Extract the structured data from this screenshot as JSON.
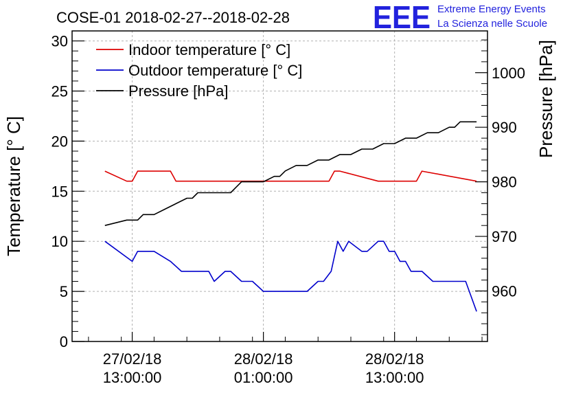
{
  "chart_data": {
    "type": "line",
    "title": "COSE-01 2018-02-27--2018-02-28",
    "logo": {
      "mark": "EEE",
      "line1": "Extreme Energy Events",
      "line2": "La Scienza nelle Scuole"
    },
    "ylabel_left": "Temperature [° C]",
    "ylabel_right": "Pressure [hPa]",
    "ylim_left": [
      0,
      31
    ],
    "yticks_left": [
      0,
      5,
      10,
      15,
      20,
      25,
      30
    ],
    "ylim_right": [
      950.75,
      1007.65
    ],
    "yticks_right": [
      960,
      970,
      980,
      990,
      1000
    ],
    "xlim_hours": [
      7.5,
      45.5
    ],
    "xticks": [
      {
        "hour": 13,
        "line1": "27/02/18",
        "line2": "13:00:00"
      },
      {
        "hour": 25,
        "line1": "28/02/18",
        "line2": "01:00:00"
      },
      {
        "hour": 37,
        "line1": "28/02/18",
        "line2": "13:00:00"
      }
    ],
    "grid": true,
    "legend_position": "top-left",
    "series": [
      {
        "name": "Indoor temperature [° C]",
        "color": "#dd0000",
        "axis": "left",
        "x": [
          10.5,
          12.5,
          13.0,
          13.5,
          16.5,
          17.0,
          30.5,
          31.0,
          31.5,
          32.0,
          35.5,
          36.0,
          36.5,
          37.0,
          38.5,
          39.0,
          39.5,
          44.5
        ],
        "y": [
          17,
          16,
          16,
          17,
          17,
          16,
          16,
          16,
          17,
          17,
          16,
          16,
          16,
          16,
          16,
          16,
          17,
          16
        ]
      },
      {
        "name": "Outdoor temperature [° C]",
        "color": "#0000cc",
        "axis": "left",
        "x": [
          10.5,
          13.0,
          13.5,
          15.0,
          16.5,
          17.5,
          18.5,
          19.5,
          20.0,
          20.5,
          21.5,
          22.0,
          23.0,
          24.0,
          25.0,
          28.5,
          29.0,
          30.0,
          30.5,
          31.2,
          31.8,
          32.3,
          32.8,
          34.0,
          34.5,
          35.5,
          36.0,
          36.5,
          37.0,
          37.5,
          38.0,
          38.5,
          39.5,
          40.5,
          41.0,
          42.0,
          43.5,
          44.5
        ],
        "y": [
          10,
          8,
          9,
          9,
          8,
          7,
          7,
          7,
          7,
          6,
          7,
          7,
          6,
          6,
          5,
          5,
          5,
          6,
          6,
          7,
          10,
          9,
          10,
          9,
          9,
          10,
          10,
          9,
          9,
          8,
          8,
          7,
          7,
          6,
          6,
          6,
          6,
          3
        ]
      },
      {
        "name": "Pressure [hPa]",
        "color": "#000000",
        "axis": "right",
        "x": [
          10.5,
          12.5,
          13.5,
          14.0,
          15.0,
          16.0,
          17.0,
          18.0,
          18.5,
          19.0,
          20.0,
          21.0,
          22.0,
          22.5,
          23.0,
          24.0,
          25.0,
          26.0,
          26.5,
          27.0,
          28.0,
          29.0,
          30.0,
          31.0,
          32.0,
          33.0,
          34.0,
          35.0,
          36.0,
          37.0,
          38.0,
          39.0,
          40.0,
          41.0,
          42.0,
          42.5,
          43.0,
          44.0,
          44.5
        ],
        "y": [
          972,
          973,
          973,
          974,
          974,
          975,
          976,
          977,
          977,
          978,
          978,
          978,
          978,
          979,
          980,
          980,
          980,
          981,
          981,
          982,
          983,
          983,
          984,
          984,
          985,
          985,
          986,
          986,
          987,
          987,
          988,
          988,
          989,
          989,
          990,
          990,
          991,
          991,
          991
        ]
      }
    ]
  }
}
